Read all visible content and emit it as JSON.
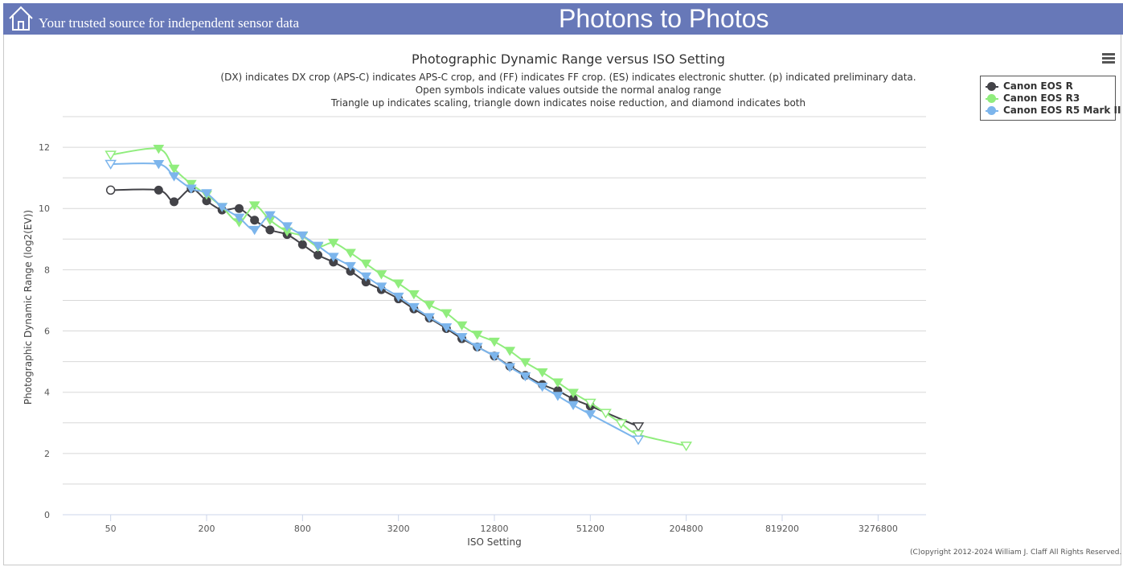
{
  "header": {
    "tagline": "Your trusted source for independent sensor data",
    "brand": "Photons to Photos",
    "background": "#6778b8",
    "home_icon": "home-icon"
  },
  "menu_icon": "hamburger-icon",
  "copyright": "(C)opyright 2012-2024 William J. Claff All Rights Reserved.",
  "chart_data": {
    "type": "line",
    "title": "Photographic Dynamic Range versus ISO Setting",
    "subtitle": [
      "(DX) indicates DX crop (APS-C) indicates APS-C crop, and (FF) indicates FF crop. (ES) indicates electronic shutter. (p) indicated preliminary data.",
      "Open symbols indicate values outside the normal analog range",
      "Triangle up indicates scaling, triangle down indicates noise reduction, and diamond indicates both"
    ],
    "xlabel": "ISO Setting",
    "ylabel": "Photographic Dynamic Range (log2(EV))",
    "x_scale": "log2",
    "xlim": [
      25,
      6553600
    ],
    "ylim": [
      0,
      13
    ],
    "x_ticks": [
      50,
      200,
      800,
      3200,
      12800,
      51200,
      204800,
      819200,
      3276800
    ],
    "x_tick_labels": [
      "50",
      "200",
      "800",
      "3200",
      "12800",
      "51200",
      "204800",
      "819200",
      "3276800"
    ],
    "y_ticks": [
      0,
      2,
      4,
      6,
      8,
      10,
      12
    ],
    "grid": true,
    "legend_position": "top-right",
    "series": [
      {
        "name": "Canon EOS R",
        "color": "#434348",
        "points": [
          {
            "x": 50,
            "y": 10.6,
            "m": "circle-open"
          },
          {
            "x": 100,
            "y": 10.6,
            "m": "circle"
          },
          {
            "x": 125,
            "y": 10.22,
            "m": "circle"
          },
          {
            "x": 160,
            "y": 10.65,
            "m": "circle"
          },
          {
            "x": 200,
            "y": 10.25,
            "m": "circle"
          },
          {
            "x": 250,
            "y": 9.95,
            "m": "circle"
          },
          {
            "x": 320,
            "y": 10.0,
            "m": "circle"
          },
          {
            "x": 400,
            "y": 9.62,
            "m": "circle"
          },
          {
            "x": 500,
            "y": 9.3,
            "m": "circle"
          },
          {
            "x": 640,
            "y": 9.15,
            "m": "circle"
          },
          {
            "x": 800,
            "y": 8.82,
            "m": "circle"
          },
          {
            "x": 1000,
            "y": 8.48,
            "m": "circle"
          },
          {
            "x": 1250,
            "y": 8.25,
            "m": "circle"
          },
          {
            "x": 1600,
            "y": 7.95,
            "m": "circle"
          },
          {
            "x": 2000,
            "y": 7.6,
            "m": "circle"
          },
          {
            "x": 2500,
            "y": 7.35,
            "m": "circle"
          },
          {
            "x": 3200,
            "y": 7.05,
            "m": "circle"
          },
          {
            "x": 4000,
            "y": 6.72,
            "m": "circle"
          },
          {
            "x": 5000,
            "y": 6.42,
            "m": "circle"
          },
          {
            "x": 6400,
            "y": 6.08,
            "m": "circle"
          },
          {
            "x": 8000,
            "y": 5.75,
            "m": "circle"
          },
          {
            "x": 10000,
            "y": 5.48,
            "m": "circle"
          },
          {
            "x": 12800,
            "y": 5.18,
            "m": "circle"
          },
          {
            "x": 16000,
            "y": 4.85,
            "m": "circle"
          },
          {
            "x": 20000,
            "y": 4.55,
            "m": "circle"
          },
          {
            "x": 25600,
            "y": 4.25,
            "m": "circle"
          },
          {
            "x": 32000,
            "y": 4.05,
            "m": "circle"
          },
          {
            "x": 40000,
            "y": 3.78,
            "m": "circle"
          },
          {
            "x": 51200,
            "y": 3.55,
            "m": "circle"
          },
          {
            "x": 102400,
            "y": 2.88,
            "m": "tri-down-open"
          }
        ]
      },
      {
        "name": "Canon EOS R3",
        "color": "#90ed7d",
        "points": [
          {
            "x": 50,
            "y": 11.75,
            "m": "tri-down-open"
          },
          {
            "x": 100,
            "y": 11.95,
            "m": "tri-down"
          },
          {
            "x": 125,
            "y": 11.3,
            "m": "tri-down"
          },
          {
            "x": 160,
            "y": 10.8,
            "m": "tri-down"
          },
          {
            "x": 200,
            "y": 10.45,
            "m": "tri-down"
          },
          {
            "x": 250,
            "y": 10.05,
            "m": "tri-down"
          },
          {
            "x": 320,
            "y": 9.55,
            "m": "tri-down"
          },
          {
            "x": 400,
            "y": 10.1,
            "m": "tri-down"
          },
          {
            "x": 500,
            "y": 9.62,
            "m": "tri-down"
          },
          {
            "x": 640,
            "y": 9.25,
            "m": "tri-down"
          },
          {
            "x": 800,
            "y": 9.1,
            "m": "tri-down"
          },
          {
            "x": 1000,
            "y": 8.75,
            "m": "tri-down"
          },
          {
            "x": 1250,
            "y": 8.88,
            "m": "tri-down"
          },
          {
            "x": 1600,
            "y": 8.55,
            "m": "tri-down"
          },
          {
            "x": 2000,
            "y": 8.2,
            "m": "tri-down"
          },
          {
            "x": 2500,
            "y": 7.85,
            "m": "tri-down"
          },
          {
            "x": 3200,
            "y": 7.55,
            "m": "tri-down"
          },
          {
            "x": 4000,
            "y": 7.2,
            "m": "tri-down"
          },
          {
            "x": 5000,
            "y": 6.85,
            "m": "tri-down"
          },
          {
            "x": 6400,
            "y": 6.58,
            "m": "tri-down"
          },
          {
            "x": 8000,
            "y": 6.18,
            "m": "tri-down"
          },
          {
            "x": 10000,
            "y": 5.88,
            "m": "tri-down"
          },
          {
            "x": 12800,
            "y": 5.65,
            "m": "tri-down"
          },
          {
            "x": 16000,
            "y": 5.35,
            "m": "tri-down"
          },
          {
            "x": 20000,
            "y": 4.98,
            "m": "tri-down"
          },
          {
            "x": 25600,
            "y": 4.65,
            "m": "tri-down"
          },
          {
            "x": 32000,
            "y": 4.32,
            "m": "tri-down"
          },
          {
            "x": 40000,
            "y": 3.98,
            "m": "tri-down"
          },
          {
            "x": 51200,
            "y": 3.65,
            "m": "tri-down-open"
          },
          {
            "x": 64000,
            "y": 3.32,
            "m": "tri-down-open"
          },
          {
            "x": 80000,
            "y": 2.98,
            "m": "tri-down-open"
          },
          {
            "x": 102400,
            "y": 2.62,
            "m": "tri-down-open"
          },
          {
            "x": 204800,
            "y": 2.25,
            "m": "tri-down-open"
          }
        ]
      },
      {
        "name": "Canon EOS R5 Mark II",
        "color": "#7cb5ec",
        "points": [
          {
            "x": 50,
            "y": 11.45,
            "m": "tri-down-open"
          },
          {
            "x": 100,
            "y": 11.45,
            "m": "tri-down"
          },
          {
            "x": 125,
            "y": 11.05,
            "m": "tri-down"
          },
          {
            "x": 160,
            "y": 10.65,
            "m": "tri-down"
          },
          {
            "x": 200,
            "y": 10.5,
            "m": "tri-down"
          },
          {
            "x": 250,
            "y": 10.05,
            "m": "tri-down"
          },
          {
            "x": 320,
            "y": 9.7,
            "m": "tri-down"
          },
          {
            "x": 400,
            "y": 9.3,
            "m": "tri-down"
          },
          {
            "x": 500,
            "y": 9.78,
            "m": "tri-down"
          },
          {
            "x": 640,
            "y": 9.42,
            "m": "tri-down"
          },
          {
            "x": 800,
            "y": 9.12,
            "m": "tri-down"
          },
          {
            "x": 1000,
            "y": 8.78,
            "m": "tri-down"
          },
          {
            "x": 1250,
            "y": 8.42,
            "m": "tri-down"
          },
          {
            "x": 1600,
            "y": 8.12,
            "m": "tri-down"
          },
          {
            "x": 2000,
            "y": 7.78,
            "m": "tri-down"
          },
          {
            "x": 2500,
            "y": 7.45,
            "m": "tri-down"
          },
          {
            "x": 3200,
            "y": 7.12,
            "m": "tri-down"
          },
          {
            "x": 4000,
            "y": 6.78,
            "m": "tri-down"
          },
          {
            "x": 5000,
            "y": 6.45,
            "m": "tri-down"
          },
          {
            "x": 6400,
            "y": 6.12,
            "m": "tri-down"
          },
          {
            "x": 8000,
            "y": 5.8,
            "m": "tri-down"
          },
          {
            "x": 10000,
            "y": 5.48,
            "m": "tri-down"
          },
          {
            "x": 12800,
            "y": 5.18,
            "m": "tri-down"
          },
          {
            "x": 16000,
            "y": 4.82,
            "m": "tri-down"
          },
          {
            "x": 20000,
            "y": 4.52,
            "m": "tri-down"
          },
          {
            "x": 25600,
            "y": 4.18,
            "m": "tri-down"
          },
          {
            "x": 32000,
            "y": 3.88,
            "m": "tri-down"
          },
          {
            "x": 40000,
            "y": 3.58,
            "m": "tri-down"
          },
          {
            "x": 51200,
            "y": 3.28,
            "m": "tri-down"
          },
          {
            "x": 102400,
            "y": 2.45,
            "m": "tri-down-open"
          }
        ]
      }
    ]
  }
}
